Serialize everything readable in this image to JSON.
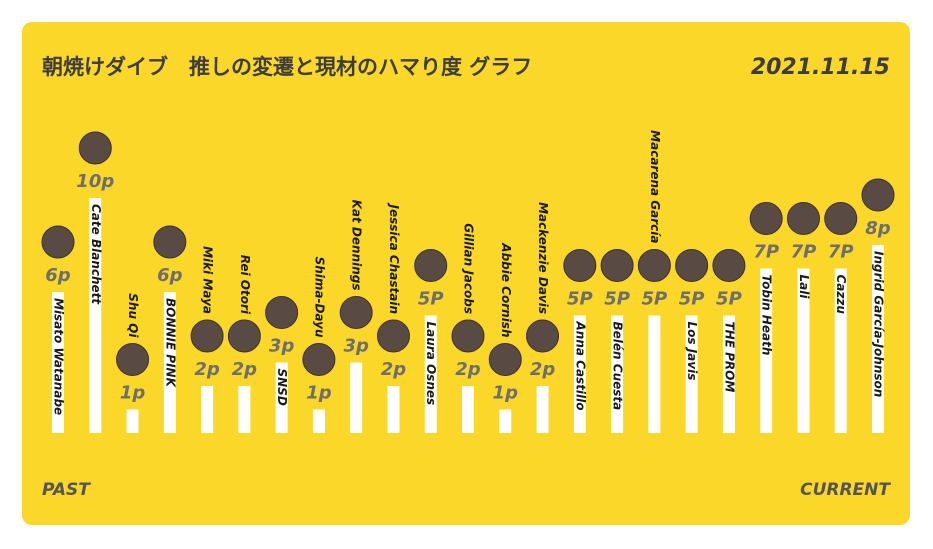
{
  "chart_data": {
    "type": "bar",
    "title": "朝焼けダイブ　推しの変遷と現材のハマり度 グラフ",
    "date": "2021.11.15",
    "start_label": "PAST",
    "end_label": "CURRENT",
    "categories": [
      "Misato Watanabe",
      "Cate Blanchett",
      "Shu Qi",
      "BONNIE PINK",
      "Miki Maya",
      "Rei Otori",
      "SNSD",
      "Shima-Dayu",
      "Kat Dennings",
      "Jessica Chastain",
      "Laura Osnes",
      "Gillian Jacobs",
      "Abbie Cornish",
      "Mackenzie Davis",
      "Anna Castillo",
      "Belén Cuesta",
      "Macarena García",
      "Los Javis",
      "THE PROM",
      "Tobin Heath",
      "Lali",
      "Cazzu",
      "Ingrid García-Johnson"
    ],
    "values": [
      6,
      10,
      1,
      6,
      2,
      2,
      3,
      1,
      3,
      2,
      5,
      2,
      1,
      2,
      5,
      5,
      5,
      5,
      5,
      7,
      7,
      7,
      8
    ],
    "value_labels": [
      "6p",
      "10p",
      "1p",
      "6p",
      "2p",
      "2p",
      "3p",
      "1p",
      "3p",
      "2p",
      "5P",
      "2p",
      "1p",
      "2p",
      "5P",
      "5P",
      "5P",
      "5P",
      "5P",
      "7P",
      "7P",
      "7P",
      "8p"
    ],
    "color": "#ffffff"
  }
}
